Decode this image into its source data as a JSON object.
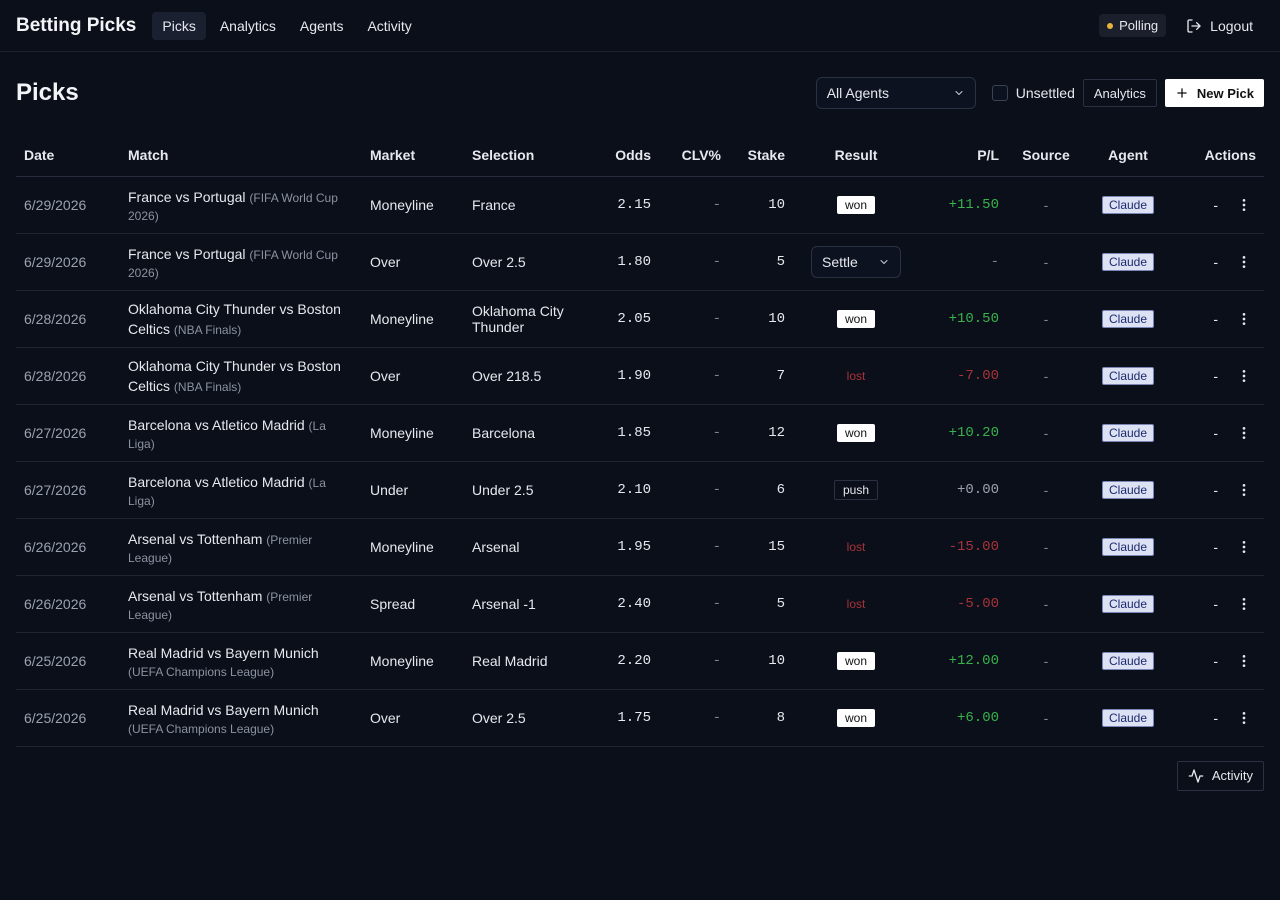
{
  "nav": {
    "brand": "Betting Picks",
    "links": [
      "Picks",
      "Analytics",
      "Agents",
      "Activity"
    ],
    "active": "Picks",
    "polling_label": "Polling",
    "logout_label": "Logout"
  },
  "header": {
    "title": "Picks",
    "agent_filter": "All Agents",
    "unsettled_label": "Unsettled",
    "analytics_label": "Analytics",
    "new_pick_label": "New Pick"
  },
  "table": {
    "columns": [
      "Date",
      "Match",
      "Market",
      "Selection",
      "Odds",
      "CLV%",
      "Stake",
      "Result",
      "P/L",
      "Source",
      "Agent",
      "Actions"
    ],
    "rows": [
      {
        "date": "6/29/2026",
        "match": "France vs Portugal",
        "league": "(FIFA World Cup 2026)",
        "market": "Moneyline",
        "selection": "France",
        "odds": "2.15",
        "clv": "-",
        "stake": "10",
        "result": "won",
        "pl": "+11.50",
        "source": "-",
        "agent": "Claude",
        "action": "-"
      },
      {
        "date": "6/29/2026",
        "match": "France vs Portugal",
        "league": "(FIFA World Cup 2026)",
        "market": "Over",
        "selection": "Over 2.5",
        "odds": "1.80",
        "clv": "-",
        "stake": "5",
        "result": "Settle",
        "pl": "-",
        "source": "-",
        "agent": "Claude",
        "action": "-"
      },
      {
        "date": "6/28/2026",
        "match": "Oklahoma City Thunder vs Boston Celtics",
        "league": "(NBA Finals)",
        "market": "Moneyline",
        "selection": "Oklahoma City Thunder",
        "odds": "2.05",
        "clv": "-",
        "stake": "10",
        "result": "won",
        "pl": "+10.50",
        "source": "-",
        "agent": "Claude",
        "action": "-"
      },
      {
        "date": "6/28/2026",
        "match": "Oklahoma City Thunder vs Boston Celtics",
        "league": "(NBA Finals)",
        "market": "Over",
        "selection": "Over 218.5",
        "odds": "1.90",
        "clv": "-",
        "stake": "7",
        "result": "lost",
        "pl": "-7.00",
        "source": "-",
        "agent": "Claude",
        "action": "-"
      },
      {
        "date": "6/27/2026",
        "match": "Barcelona vs Atletico Madrid",
        "league": "(La Liga)",
        "market": "Moneyline",
        "selection": "Barcelona",
        "odds": "1.85",
        "clv": "-",
        "stake": "12",
        "result": "won",
        "pl": "+10.20",
        "source": "-",
        "agent": "Claude",
        "action": "-"
      },
      {
        "date": "6/27/2026",
        "match": "Barcelona vs Atletico Madrid",
        "league": "(La Liga)",
        "market": "Under",
        "selection": "Under 2.5",
        "odds": "2.10",
        "clv": "-",
        "stake": "6",
        "result": "push",
        "pl": "+0.00",
        "source": "-",
        "agent": "Claude",
        "action": "-"
      },
      {
        "date": "6/26/2026",
        "match": "Arsenal vs Tottenham",
        "league": "(Premier League)",
        "market": "Moneyline",
        "selection": "Arsenal",
        "odds": "1.95",
        "clv": "-",
        "stake": "15",
        "result": "lost",
        "pl": "-15.00",
        "source": "-",
        "agent": "Claude",
        "action": "-"
      },
      {
        "date": "6/26/2026",
        "match": "Arsenal vs Tottenham",
        "league": "(Premier League)",
        "market": "Spread",
        "selection": "Arsenal -1",
        "odds": "2.40",
        "clv": "-",
        "stake": "5",
        "result": "lost",
        "pl": "-5.00",
        "source": "-",
        "agent": "Claude",
        "action": "-"
      },
      {
        "date": "6/25/2026",
        "match": "Real Madrid vs Bayern Munich",
        "league": "(UEFA Champions League)",
        "market": "Moneyline",
        "selection": "Real Madrid",
        "odds": "2.20",
        "clv": "-",
        "stake": "10",
        "result": "won",
        "pl": "+12.00",
        "source": "-",
        "agent": "Claude",
        "action": "-"
      },
      {
        "date": "6/25/2026",
        "match": "Real Madrid vs Bayern Munich",
        "league": "(UEFA Champions League)",
        "market": "Over",
        "selection": "Over 2.5",
        "odds": "1.75",
        "clv": "-",
        "stake": "8",
        "result": "won",
        "pl": "+6.00",
        "source": "-",
        "agent": "Claude",
        "action": "-"
      }
    ]
  },
  "footer": {
    "activity_label": "Activity"
  },
  "colors": {
    "background": "#0b0f19",
    "positive": "#38b24c",
    "negative": "#a8323a",
    "polling_dot": "#e8b33a",
    "agent_badge": "#dce2f4"
  },
  "icons": {
    "logout": "logout-icon",
    "new_pick": "plus-icon",
    "activity": "activity-icon",
    "dropdown": "chevron-down-icon",
    "row_menu": "kebab-menu-icon"
  }
}
